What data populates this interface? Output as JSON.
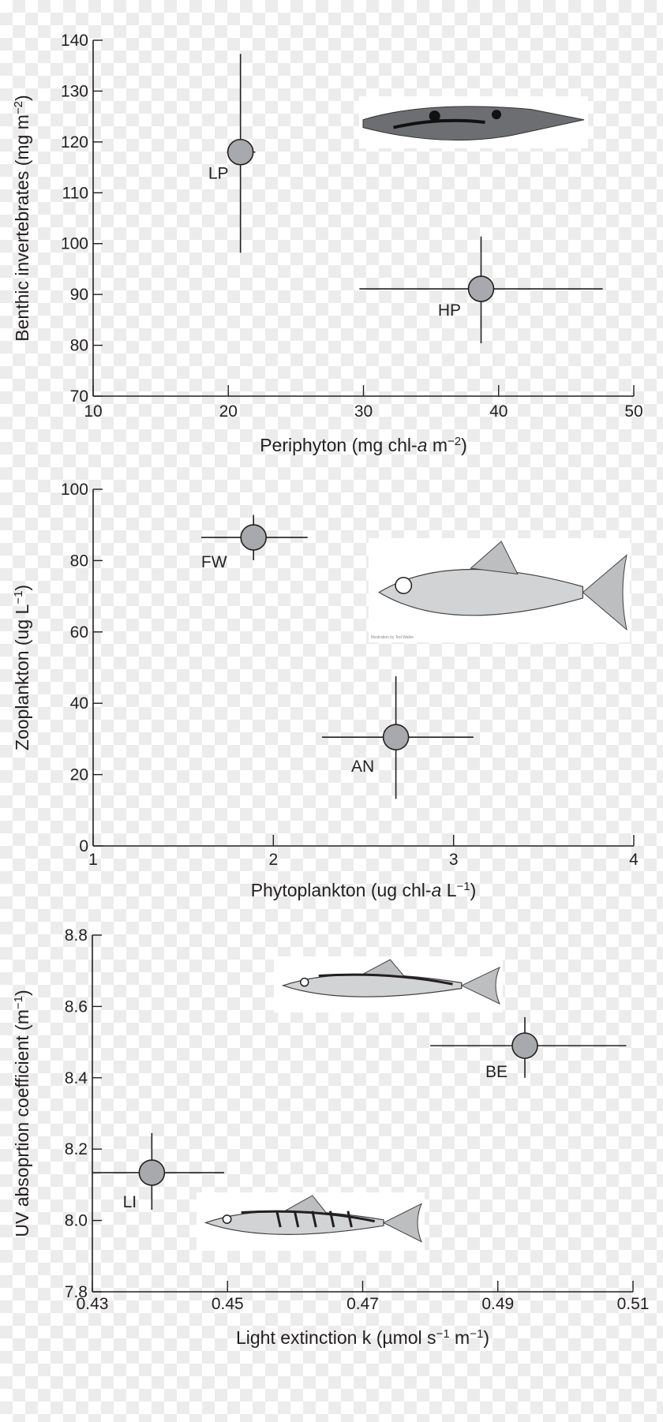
{
  "colors": {
    "axis": "#231f20",
    "marker_fill": "#a7a9ac",
    "marker_stroke": "#231f20",
    "text": "#231f20"
  },
  "chart_data": [
    {
      "type": "scatter",
      "xlabel_parts": [
        {
          "t": "Periphyton (mg chl-"
        },
        {
          "t": "a",
          "style": "italic"
        },
        {
          "t": " m"
        },
        {
          "t": "−2",
          "style": "sup"
        },
        {
          "t": ")"
        }
      ],
      "ylabel_parts": [
        {
          "t": "Benthic invertebrates (mg m"
        },
        {
          "t": "−2",
          "style": "sup"
        },
        {
          "t": ")"
        }
      ],
      "xlim": [
        10,
        50
      ],
      "ylim": [
        70,
        140
      ],
      "xticks": [
        10,
        20,
        30,
        40,
        50
      ],
      "yticks": [
        70,
        80,
        90,
        100,
        110,
        120,
        130,
        140
      ],
      "xtick_labels": [
        "10",
        "20",
        "30",
        "40",
        "50"
      ],
      "ytick_labels": [
        "70",
        "80",
        "90",
        "100",
        "110",
        "120",
        "130",
        "140"
      ],
      "grid": false,
      "points": [
        {
          "label": "LP",
          "x": 20.9,
          "y": 118.0,
          "x_err": [
            19.9,
            22.0
          ],
          "y_err": [
            98.2,
            137.3
          ]
        },
        {
          "label": "HP",
          "x": 38.7,
          "y": 91.1,
          "x_err": [
            29.7,
            47.7
          ],
          "y_err": [
            80.4,
            101.4
          ]
        }
      ],
      "illustrations": [
        {
          "icon": "guppy-fish-photo"
        }
      ]
    },
    {
      "type": "scatter",
      "xlabel_parts": [
        {
          "t": "Phytoplankton (ug chl-"
        },
        {
          "t": "a",
          "style": "italic"
        },
        {
          "t": " L"
        },
        {
          "t": "−1",
          "style": "sup"
        },
        {
          "t": ")"
        }
      ],
      "ylabel_parts": [
        {
          "t": "Zooplankton (ug L"
        },
        {
          "t": "−1",
          "style": "sup"
        },
        {
          "t": ")"
        }
      ],
      "xlim": [
        1,
        4
      ],
      "ylim": [
        0,
        100
      ],
      "xticks": [
        1,
        2,
        3,
        4
      ],
      "yticks": [
        0,
        20,
        40,
        60,
        80,
        100
      ],
      "xtick_labels": [
        "1",
        "2",
        "3",
        "4"
      ],
      "ytick_labels": [
        "0",
        "20",
        "40",
        "60",
        "80",
        "100"
      ],
      "grid": false,
      "points": [
        {
          "label": "FW",
          "x": 1.89,
          "y": 86.5,
          "x_err": [
            1.6,
            2.19
          ],
          "y_err": [
            80.1,
            92.8
          ]
        },
        {
          "label": "AN",
          "x": 2.68,
          "y": 30.5,
          "x_err": [
            2.27,
            3.11
          ],
          "y_err": [
            13.2,
            47.6
          ]
        }
      ],
      "illustrations": [
        {
          "icon": "alewife-fish-drawing",
          "credit": "Illustration by Ted Walke"
        }
      ]
    },
    {
      "type": "scatter",
      "xlabel_parts": [
        {
          "t": "Light extinction k (µmol s"
        },
        {
          "t": "−1",
          "style": "sup"
        },
        {
          "t": " m"
        },
        {
          "t": "−1",
          "style": "sup"
        },
        {
          "t": ")"
        }
      ],
      "ylabel_parts": [
        {
          "t": "UV absoprtion coefficient (m"
        },
        {
          "t": "−1",
          "style": "sup"
        },
        {
          "t": ")"
        }
      ],
      "xlim": [
        0.43,
        0.51
      ],
      "ylim": [
        7.8,
        8.8
      ],
      "xticks": [
        0.43,
        0.45,
        0.47,
        0.49,
        0.51
      ],
      "yticks": [
        7.8,
        8.0,
        8.2,
        8.4,
        8.6,
        8.8
      ],
      "xtick_labels": [
        "0.43",
        "0.45",
        "0.47",
        "0.49",
        "0.51"
      ],
      "ytick_labels": [
        "7.8",
        "8.0",
        "8.2",
        "8.4",
        "8.6",
        "8.8"
      ],
      "grid": false,
      "points": [
        {
          "label": "BE",
          "x": 0.494,
          "y": 8.49,
          "x_err": [
            0.48,
            0.509
          ],
          "y_err": [
            8.4,
            8.57
          ]
        },
        {
          "label": "LI",
          "x": 0.4388,
          "y": 8.134,
          "x_err": [
            0.43,
            0.4495
          ],
          "y_err": [
            8.03,
            8.245
          ]
        }
      ],
      "illustrations": [
        {
          "icon": "stickleback-fish-drawing"
        },
        {
          "icon": "stickleback-fish-drawing-barred"
        }
      ]
    }
  ]
}
